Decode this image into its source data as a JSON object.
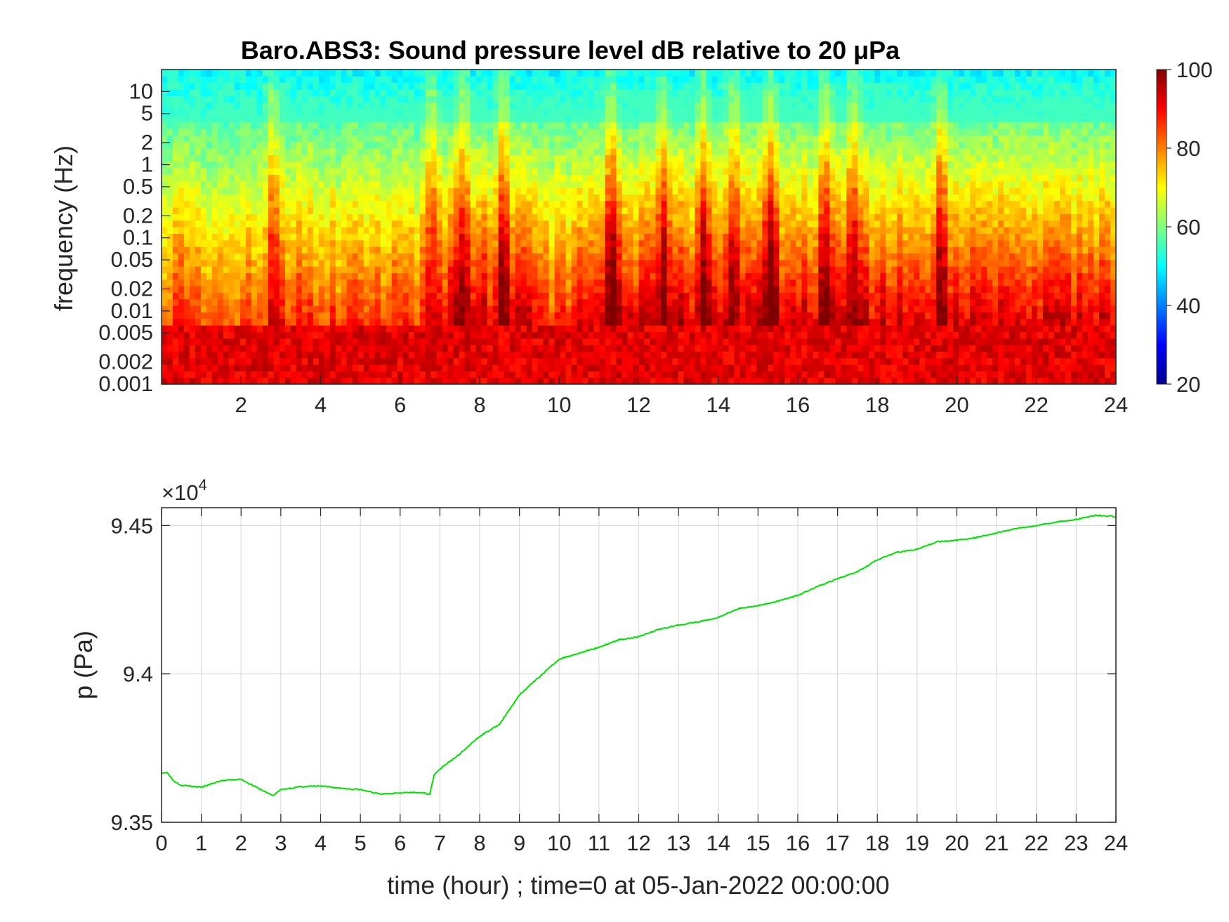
{
  "chart_data": [
    {
      "type": "heatmap",
      "title": "Baro.ABS3: Sound pressure level dB relative to 20 μPa",
      "ylabel": "frequency (Hz)",
      "xlabel": "",
      "xlim": [
        0,
        24
      ],
      "x_ticks": [
        2,
        4,
        6,
        8,
        10,
        12,
        14,
        16,
        18,
        20,
        22,
        24
      ],
      "y_scale": "log",
      "ylim": [
        0.001,
        20
      ],
      "y_ticks": [
        {
          "value": 10,
          "label": "10"
        },
        {
          "value": 5,
          "label": "5"
        },
        {
          "value": 2,
          "label": "2"
        },
        {
          "value": 1,
          "label": "1"
        },
        {
          "value": 0.5,
          "label": "0.5"
        },
        {
          "value": 0.2,
          "label": "0.2"
        },
        {
          "value": 0.1,
          "label": "0.1"
        },
        {
          "value": 0.05,
          "label": "0.05"
        },
        {
          "value": 0.02,
          "label": "0.02"
        },
        {
          "value": 0.01,
          "label": "0.01"
        },
        {
          "value": 0.005,
          "label": "0.005"
        },
        {
          "value": 0.002,
          "label": "0.002"
        },
        {
          "value": 0.001,
          "label": "0.001"
        }
      ],
      "colormap": "jet",
      "colorbar": {
        "range": [
          20,
          100
        ],
        "ticks": [
          "100",
          "80",
          "60",
          "40",
          "20"
        ]
      },
      "active_segments_hours": [
        [
          7,
          9.5
        ],
        [
          10.5,
          24
        ]
      ],
      "quiet_segments_hours": [
        [
          0,
          6.9
        ],
        [
          9.5,
          10.5
        ]
      ],
      "spikes_hours": [
        2.8,
        6.8,
        7.6,
        8.6,
        11.3,
        12.6,
        13.6,
        14.4,
        15.3,
        16.7,
        17.4,
        19.6
      ]
    },
    {
      "type": "line",
      "xlabel": "time (hour) ; time=0 at 05-Jan-2022 00:00:00",
      "ylabel": "p (Pa)",
      "exponent_label": "×10",
      "exponent_power": "4",
      "xlim": [
        0,
        24
      ],
      "ylim": [
        93500,
        94560
      ],
      "x_ticks": [
        "0",
        "1",
        "2",
        "3",
        "4",
        "5",
        "6",
        "7",
        "8",
        "9",
        "10",
        "11",
        "12",
        "13",
        "14",
        "15",
        "16",
        "17",
        "18",
        "19",
        "20",
        "21",
        "22",
        "23",
        "24"
      ],
      "y_ticks": [
        {
          "value": 93500,
          "label": "9.35"
        },
        {
          "value": 94000,
          "label": "9.4"
        },
        {
          "value": 94500,
          "label": "9.45"
        }
      ],
      "grid": true,
      "series": [
        {
          "color": "#00e000",
          "x": [
            0,
            0.15,
            0.3,
            0.5,
            1.0,
            1.5,
            2.0,
            2.5,
            2.8,
            3.0,
            3.5,
            4.0,
            4.5,
            5.0,
            5.5,
            6.0,
            6.5,
            6.75,
            6.85,
            7.0,
            7.5,
            8.0,
            8.5,
            9.0,
            9.5,
            10.0,
            10.5,
            11.0,
            11.5,
            12.0,
            12.5,
            13.0,
            13.5,
            14.0,
            14.5,
            15.0,
            15.5,
            16.0,
            16.5,
            17.0,
            17.5,
            18.0,
            18.5,
            19.0,
            19.5,
            20.0,
            20.5,
            21.0,
            21.5,
            22.0,
            22.5,
            23.0,
            23.5,
            24.0
          ],
          "y": [
            93666,
            93668,
            93640,
            93625,
            93618,
            93640,
            93645,
            93610,
            93590,
            93610,
            93620,
            93622,
            93615,
            93610,
            93595,
            93600,
            93600,
            93595,
            93660,
            93680,
            93730,
            93790,
            93830,
            93930,
            93990,
            94050,
            94070,
            94090,
            94115,
            94125,
            94150,
            94165,
            94175,
            94190,
            94220,
            94230,
            94245,
            94265,
            94295,
            94320,
            94345,
            94385,
            94410,
            94420,
            94445,
            94450,
            94460,
            94475,
            94490,
            94500,
            94512,
            94520,
            94535,
            94530
          ]
        }
      ]
    }
  ]
}
